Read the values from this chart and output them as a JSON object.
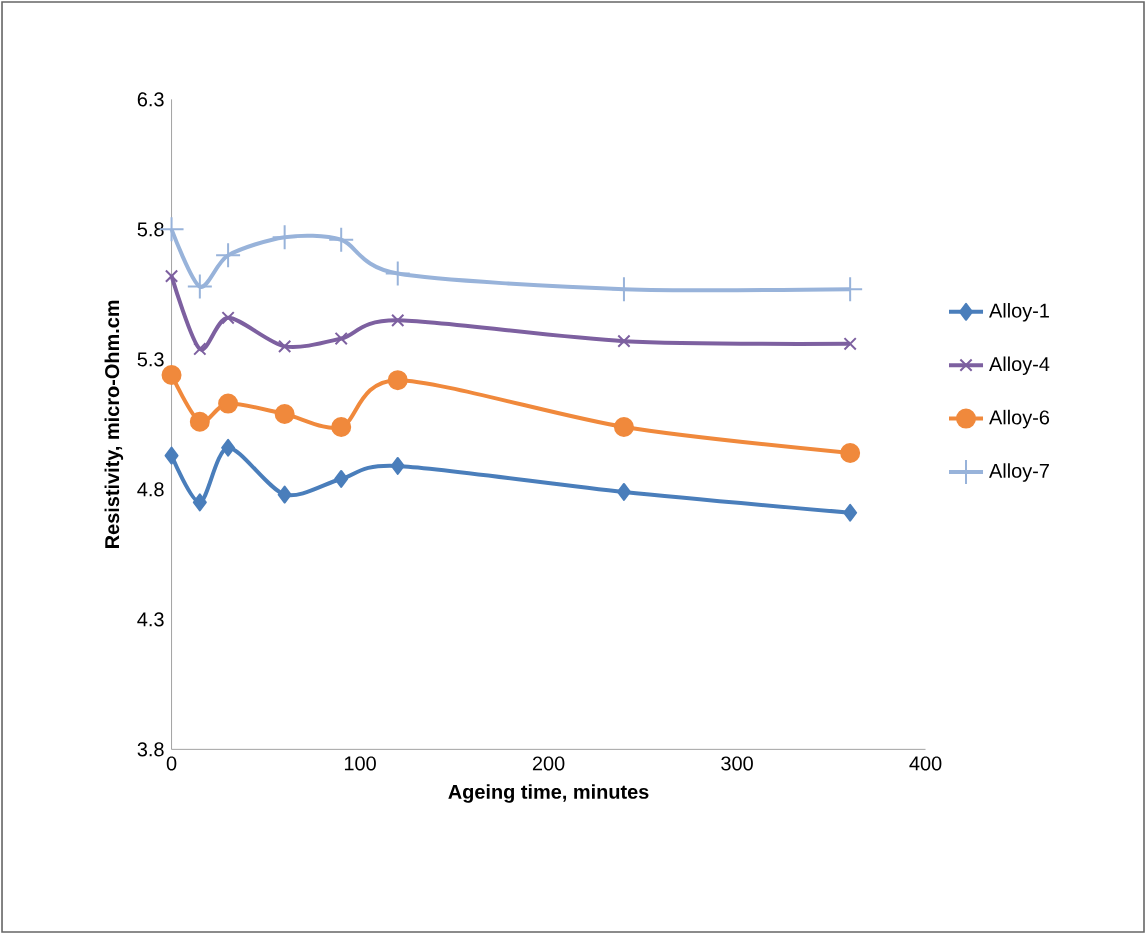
{
  "chart_data": {
    "type": "line",
    "xlabel": "Ageing time, minutes",
    "ylabel": "Resistivity, micro-Ohm.cm",
    "x": [
      0,
      15,
      30,
      60,
      90,
      120,
      240,
      360
    ],
    "series": [
      {
        "name": "Alloy-1",
        "color": "#4a7ebb",
        "marker": "diamond",
        "values": [
          4.93,
          4.75,
          4.96,
          4.78,
          4.84,
          4.89,
          4.79,
          4.71
        ]
      },
      {
        "name": "Alloy-4",
        "color": "#7d60a0",
        "marker": "cross",
        "values": [
          5.62,
          5.34,
          5.46,
          5.35,
          5.38,
          5.45,
          5.37,
          5.36
        ]
      },
      {
        "name": "Alloy-6",
        "color": "#f0893c",
        "marker": "circle",
        "values": [
          5.24,
          5.06,
          5.13,
          5.09,
          5.04,
          5.22,
          5.04,
          4.94
        ]
      },
      {
        "name": "Alloy-7",
        "color": "#98b3da",
        "marker": "plus",
        "values": [
          5.8,
          5.58,
          5.7,
          5.77,
          5.76,
          5.63,
          5.57,
          5.57
        ]
      }
    ],
    "xlim": [
      0,
      400
    ],
    "xticks": [
      0,
      100,
      200,
      300,
      400
    ],
    "ylim": [
      3.8,
      6.3
    ],
    "yticks": [
      3.8,
      4.3,
      4.8,
      5.3,
      5.8,
      6.3
    ],
    "grid": false,
    "legend": "right",
    "line_style": "solid"
  }
}
